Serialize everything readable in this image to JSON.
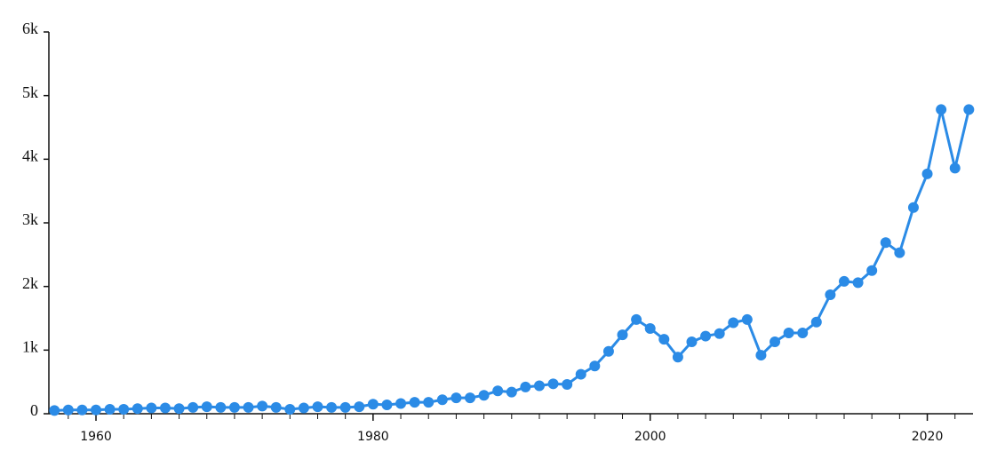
{
  "chart_data": {
    "type": "line",
    "color": "#2b8be6",
    "x": [
      1957,
      1958,
      1959,
      1960,
      1961,
      1962,
      1963,
      1964,
      1965,
      1966,
      1967,
      1968,
      1969,
      1970,
      1971,
      1972,
      1973,
      1974,
      1975,
      1976,
      1977,
      1978,
      1979,
      1980,
      1981,
      1982,
      1983,
      1984,
      1985,
      1986,
      1987,
      1988,
      1989,
      1990,
      1991,
      1992,
      1993,
      1994,
      1995,
      1996,
      1997,
      1998,
      1999,
      2000,
      2001,
      2002,
      2003,
      2004,
      2005,
      2006,
      2007,
      2008,
      2009,
      2010,
      2011,
      2012,
      2013,
      2014,
      2015,
      2016,
      2017,
      2018,
      2019,
      2020,
      2021,
      2022,
      2023
    ],
    "values": [
      50,
      60,
      60,
      60,
      70,
      70,
      80,
      90,
      90,
      80,
      100,
      110,
      100,
      100,
      100,
      120,
      100,
      70,
      90,
      110,
      100,
      100,
      110,
      150,
      140,
      160,
      180,
      180,
      220,
      250,
      250,
      290,
      360,
      340,
      420,
      440,
      470,
      460,
      620,
      750,
      980,
      1240,
      1480,
      1340,
      1170,
      890,
      1130,
      1220,
      1260,
      1430,
      1480,
      920,
      1130,
      1270,
      1270,
      1440,
      1870,
      2080,
      2060,
      2250,
      2690,
      2530,
      3240,
      3770,
      4780,
      3860,
      4780
    ],
    "xlim": [
      1956.6,
      2023.3
    ],
    "xticks": [
      1960,
      1980,
      2000,
      2020
    ],
    "xminorticks": [
      1958,
      1960,
      1962,
      1964,
      1966,
      1968,
      1970,
      1972,
      1974,
      1976,
      1978,
      1980,
      1982,
      1984,
      1986,
      1988,
      1990,
      1992,
      1994,
      1996,
      1998,
      2000,
      2002,
      2004,
      2006,
      2008,
      2010,
      2012,
      2014,
      2016,
      2018,
      2020,
      2022
    ],
    "ylim": [
      0,
      6000
    ],
    "yticks": [
      0,
      {
        "value": 1000,
        "label": "1k"
      },
      {
        "value": 2000,
        "label": "2k"
      },
      {
        "value": 3000,
        "label": "3k"
      },
      {
        "value": 4000,
        "label": "4k"
      },
      {
        "value": 5000,
        "label": "5k"
      },
      {
        "value": 6000,
        "label": "6k"
      }
    ]
  }
}
